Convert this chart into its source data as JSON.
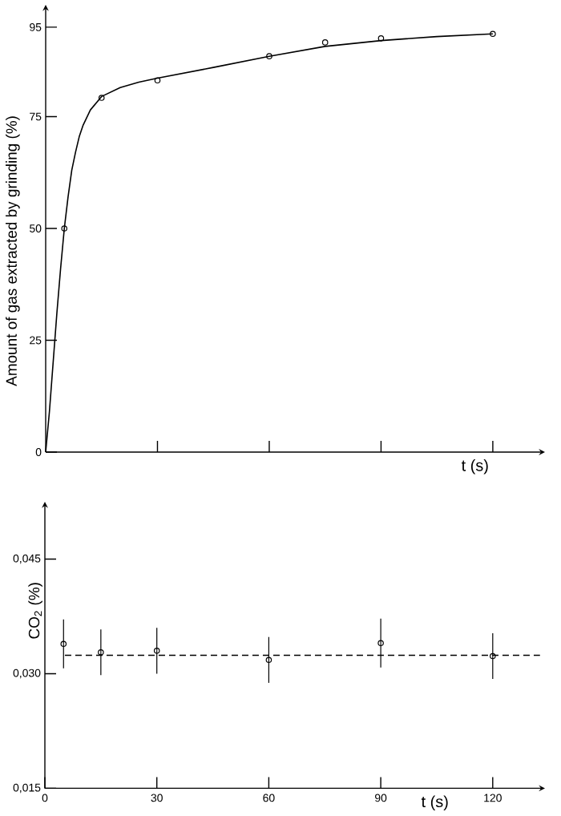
{
  "chart_data": [
    {
      "type": "scatter",
      "ylabel": "Amount of gas extracted by grinding (%)",
      "xlabel": "t (s)",
      "xlim": [
        0,
        134
      ],
      "ylim": [
        0,
        100
      ],
      "xticks": [
        {
          "value": 30,
          "label": null
        },
        {
          "value": 60,
          "label": null
        },
        {
          "value": 90,
          "label": null
        },
        {
          "value": 120,
          "label": null
        }
      ],
      "yticks": [
        0,
        25,
        50,
        75,
        95
      ],
      "tick_labels": "y",
      "marker": "circle",
      "series": [
        {
          "color": "#000000",
          "x": [
            5,
            15,
            30,
            60,
            75,
            90,
            120
          ],
          "values": [
            50,
            79.2,
            83.1,
            88.5,
            91.6,
            92.5,
            93.5
          ]
        },
        {
          "type": "line",
          "marker": "none",
          "line_style": "solid",
          "color": "#000000",
          "x": [
            0,
            1,
            2,
            3,
            4,
            5,
            6,
            7,
            8,
            9,
            10,
            12,
            15,
            20,
            25,
            30,
            45,
            60,
            75,
            90,
            105,
            120
          ],
          "values": [
            0,
            9,
            20,
            31,
            41,
            50,
            57,
            63,
            67,
            70.5,
            73,
            76.5,
            79.5,
            81.5,
            82.7,
            83.6,
            86,
            88.5,
            90.7,
            92,
            92.9,
            93.5
          ]
        }
      ]
    },
    {
      "type": "scatter",
      "ylabel": "CO$_{2}$ (%)",
      "xlabel": "t (s)",
      "xlim": [
        0,
        134
      ],
      "ylim": [
        0.015,
        0.0525
      ],
      "xticks": [
        0,
        30,
        60,
        90,
        120
      ],
      "yticks": [
        {
          "value": 0.015,
          "label": "0,015"
        },
        {
          "value": 0.03,
          "label": "0,030"
        },
        {
          "value": 0.045,
          "label": "0,045"
        }
      ],
      "marker": "circle",
      "series": [
        {
          "color": "#000000",
          "x": [
            5,
            15,
            30,
            60,
            90,
            120
          ],
          "values": [
            0.0339,
            0.0328,
            0.033,
            0.0318,
            0.034,
            0.0323
          ],
          "errors": [
            0.0032,
            0.003,
            0.003,
            0.003,
            0.0032,
            0.003
          ]
        }
      ],
      "ref_lines": [
        {
          "axis": "y",
          "value": 0.0324,
          "line_style": "dashed"
        }
      ]
    }
  ]
}
